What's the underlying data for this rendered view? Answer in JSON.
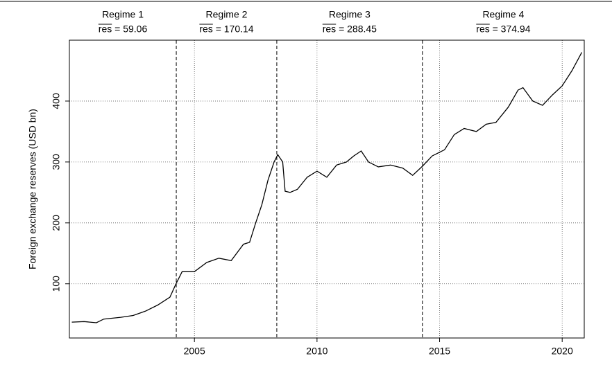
{
  "chart_data": {
    "type": "line",
    "y_label": "Foreign exchange reserves (USD bn)",
    "x": [
      2000.0,
      2000.5,
      2001.0,
      2001.3,
      2002.0,
      2002.5,
      2003.0,
      2003.5,
      2004.0,
      2004.25,
      2004.5,
      2005.0,
      2005.5,
      2006.0,
      2006.5,
      2007.0,
      2007.25,
      2007.5,
      2007.75,
      2008.0,
      2008.25,
      2008.4,
      2008.6,
      2008.7,
      2008.9,
      2009.2,
      2009.6,
      2010.0,
      2010.4,
      2010.8,
      2011.2,
      2011.5,
      2011.8,
      2012.1,
      2012.5,
      2013.0,
      2013.5,
      2013.9,
      2014.3,
      2014.7,
      2015.2,
      2015.6,
      2016.0,
      2016.5,
      2016.9,
      2017.3,
      2017.8,
      2018.2,
      2018.4,
      2018.8,
      2019.2,
      2019.6,
      2020.0,
      2020.4,
      2020.8
    ],
    "series": [
      {
        "name": "Foreign exchange reserves",
        "color": "#000000",
        "values": [
          37,
          38,
          36,
          42,
          45,
          48,
          55,
          65,
          78,
          100,
          120,
          120,
          135,
          142,
          138,
          165,
          168,
          200,
          230,
          270,
          300,
          312,
          300,
          252,
          250,
          255,
          275,
          285,
          275,
          295,
          300,
          310,
          318,
          300,
          292,
          295,
          290,
          278,
          293,
          310,
          320,
          345,
          355,
          350,
          362,
          365,
          390,
          418,
          422,
          400,
          393,
          410,
          425,
          450,
          480
        ]
      }
    ],
    "xlim": [
      1999.9,
      2020.9
    ],
    "ylim": [
      11,
      500
    ],
    "xticks": [
      2005,
      2010,
      2015,
      2020
    ],
    "yticks": [
      100,
      200,
      300,
      400
    ],
    "grid": true,
    "breaks": [
      2004.26,
      2008.36,
      2014.3
    ],
    "regimes": [
      {
        "name": "Regime 1",
        "label": "res = 59.06"
      },
      {
        "name": "Regime 2",
        "label": "res = 170.14"
      },
      {
        "name": "Regime 3",
        "label": "res = 288.45"
      },
      {
        "name": "Regime 4",
        "label": "res = 374.94"
      }
    ]
  }
}
